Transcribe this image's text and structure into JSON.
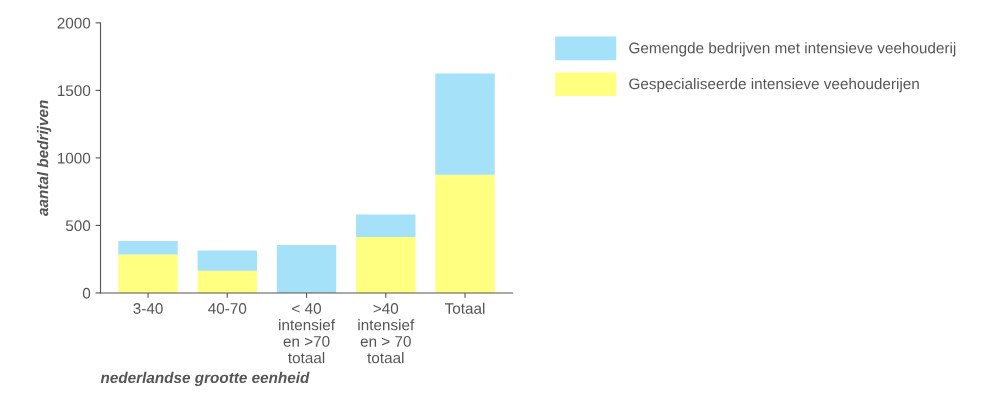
{
  "chart_data": {
    "type": "bar",
    "stacked": true,
    "xlabel": "nederlandse grootte eenheid",
    "ylabel": "aantal bedrijven",
    "categories": [
      "3-40",
      "40-70",
      "< 40\nintensief\nen >70\ntotaal",
      ">40\nintensief\nen > 70\ntotaal",
      "Totaal"
    ],
    "series": [
      {
        "name": "Gespecialiseerde intensieve veehouderijen",
        "color": "#ffff80",
        "values": [
          285,
          165,
          0,
          415,
          875
        ]
      },
      {
        "name": "Gemengde bedrijven met intensieve veehouderij",
        "color": "#a6e1fa",
        "values": [
          100,
          150,
          355,
          165,
          750
        ]
      }
    ],
    "ylim": [
      0,
      2000
    ],
    "yticks": [
      0,
      500,
      1000,
      1500,
      2000
    ],
    "grid": false,
    "legend": "top right"
  }
}
